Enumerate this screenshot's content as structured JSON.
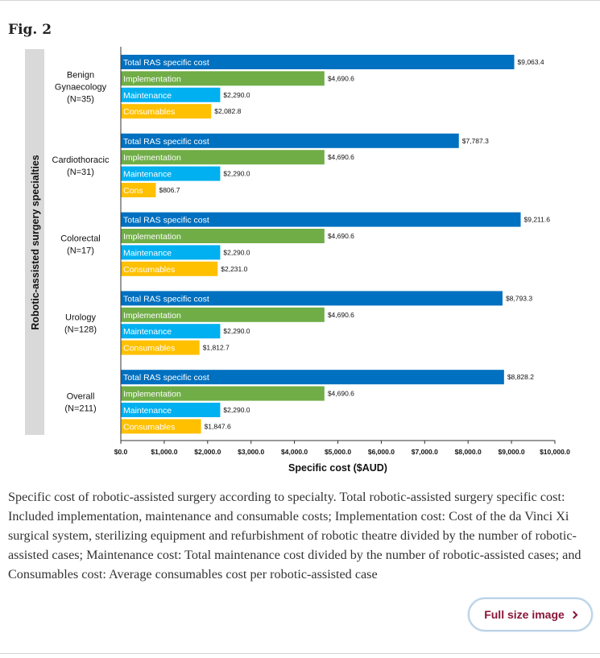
{
  "figure": {
    "title": "Fig. 2"
  },
  "chart_data": {
    "type": "bar",
    "orientation": "horizontal",
    "ylabel": "Robotic-assisted surgery specialties",
    "xlabel": "Specific cost ($AUD)",
    "xlim": [
      0,
      10000
    ],
    "xticks": [
      "$0.0",
      "$1,000.0",
      "$2,000.0",
      "$3,000.0",
      "$4,000.0",
      "$5,000.0",
      "$6,000.0",
      "$7,000.0",
      "$8,000.0",
      "$9,000.0",
      "$10,000.0"
    ],
    "xtick_values": [
      0,
      1000,
      2000,
      3000,
      4000,
      5000,
      6000,
      7000,
      8000,
      9000,
      10000
    ],
    "grid": false,
    "legend": "none",
    "series_colors": {
      "total": "#0070c0",
      "implementation": "#70ad47",
      "maintenance": "#00b0f0",
      "consumables": "#ffc000"
    },
    "groups": [
      {
        "label_lines": [
          "Benign",
          "Gynaecology",
          "(N=35)"
        ],
        "bars": [
          {
            "key": "total",
            "label": "Total RAS specific cost",
            "value": 9063.4,
            "value_label": "$9,063.4"
          },
          {
            "key": "implementation",
            "label": "Implementation",
            "value": 4690.6,
            "value_label": "$4,690.6"
          },
          {
            "key": "maintenance",
            "label": "Maintenance",
            "value": 2290.0,
            "value_label": "$2,290.0"
          },
          {
            "key": "consumables",
            "label": "Consumables",
            "value": 2082.8,
            "value_label": "$2,082.8"
          }
        ]
      },
      {
        "label_lines": [
          "Cardiothoracic",
          "(N=31)"
        ],
        "bars": [
          {
            "key": "total",
            "label": "Total RAS specific cost",
            "value": 7787.3,
            "value_label": "$7,787.3"
          },
          {
            "key": "implementation",
            "label": "Implementation",
            "value": 4690.6,
            "value_label": "$4,690.6"
          },
          {
            "key": "maintenance",
            "label": "Maintenance",
            "value": 2290.0,
            "value_label": "$2,290.0"
          },
          {
            "key": "consumables",
            "label": "Cons",
            "value": 806.7,
            "value_label": "$806.7"
          }
        ]
      },
      {
        "label_lines": [
          "Colorectal",
          "(N=17)"
        ],
        "bars": [
          {
            "key": "total",
            "label": "Total RAS specific cost",
            "value": 9211.6,
            "value_label": "$9,211.6"
          },
          {
            "key": "implementation",
            "label": "Implementation",
            "value": 4690.6,
            "value_label": "$4,690.6"
          },
          {
            "key": "maintenance",
            "label": "Maintenance",
            "value": 2290.0,
            "value_label": "$2,290.0"
          },
          {
            "key": "consumables",
            "label": "Consumables",
            "value": 2231.0,
            "value_label": "$2,231.0"
          }
        ]
      },
      {
        "label_lines": [
          "Urology",
          "(N=128)"
        ],
        "bars": [
          {
            "key": "total",
            "label": "Total RAS specific cost",
            "value": 8793.3,
            "value_label": "$8,793.3"
          },
          {
            "key": "implementation",
            "label": "Implementation",
            "value": 4690.6,
            "value_label": "$4,690.6"
          },
          {
            "key": "maintenance",
            "label": "Maintenance",
            "value": 2290.0,
            "value_label": "$2,290.0"
          },
          {
            "key": "consumables",
            "label": "Consumables",
            "value": 1812.7,
            "value_label": "$1,812.7"
          }
        ]
      },
      {
        "label_lines": [
          "Overall",
          "(N=211)"
        ],
        "bars": [
          {
            "key": "total",
            "label": "Total RAS specific cost",
            "value": 8828.2,
            "value_label": "$8,828.2"
          },
          {
            "key": "implementation",
            "label": "Implementation",
            "value": 4690.6,
            "value_label": "$4,690.6"
          },
          {
            "key": "maintenance",
            "label": "Maintenance",
            "value": 2290.0,
            "value_label": "$2,290.0"
          },
          {
            "key": "consumables",
            "label": "Consumables",
            "value": 1847.6,
            "value_label": "$1,847.6"
          }
        ]
      }
    ]
  },
  "caption": "Specific cost of robotic-assisted surgery according to specialty. Total robotic-assisted surgery specific cost: Included implementation, maintenance and consumable costs; Implementation cost: Cost of the da Vinci Xi surgical system, sterilizing equipment and refurbishment of robotic theatre divided by the number of robotic-assisted cases; Maintenance cost: Total maintenance cost divided by the number of robotic-assisted cases; and Consumables cost: Average consumables cost per robotic-assisted case",
  "full_size_button": {
    "label": "Full size image"
  }
}
